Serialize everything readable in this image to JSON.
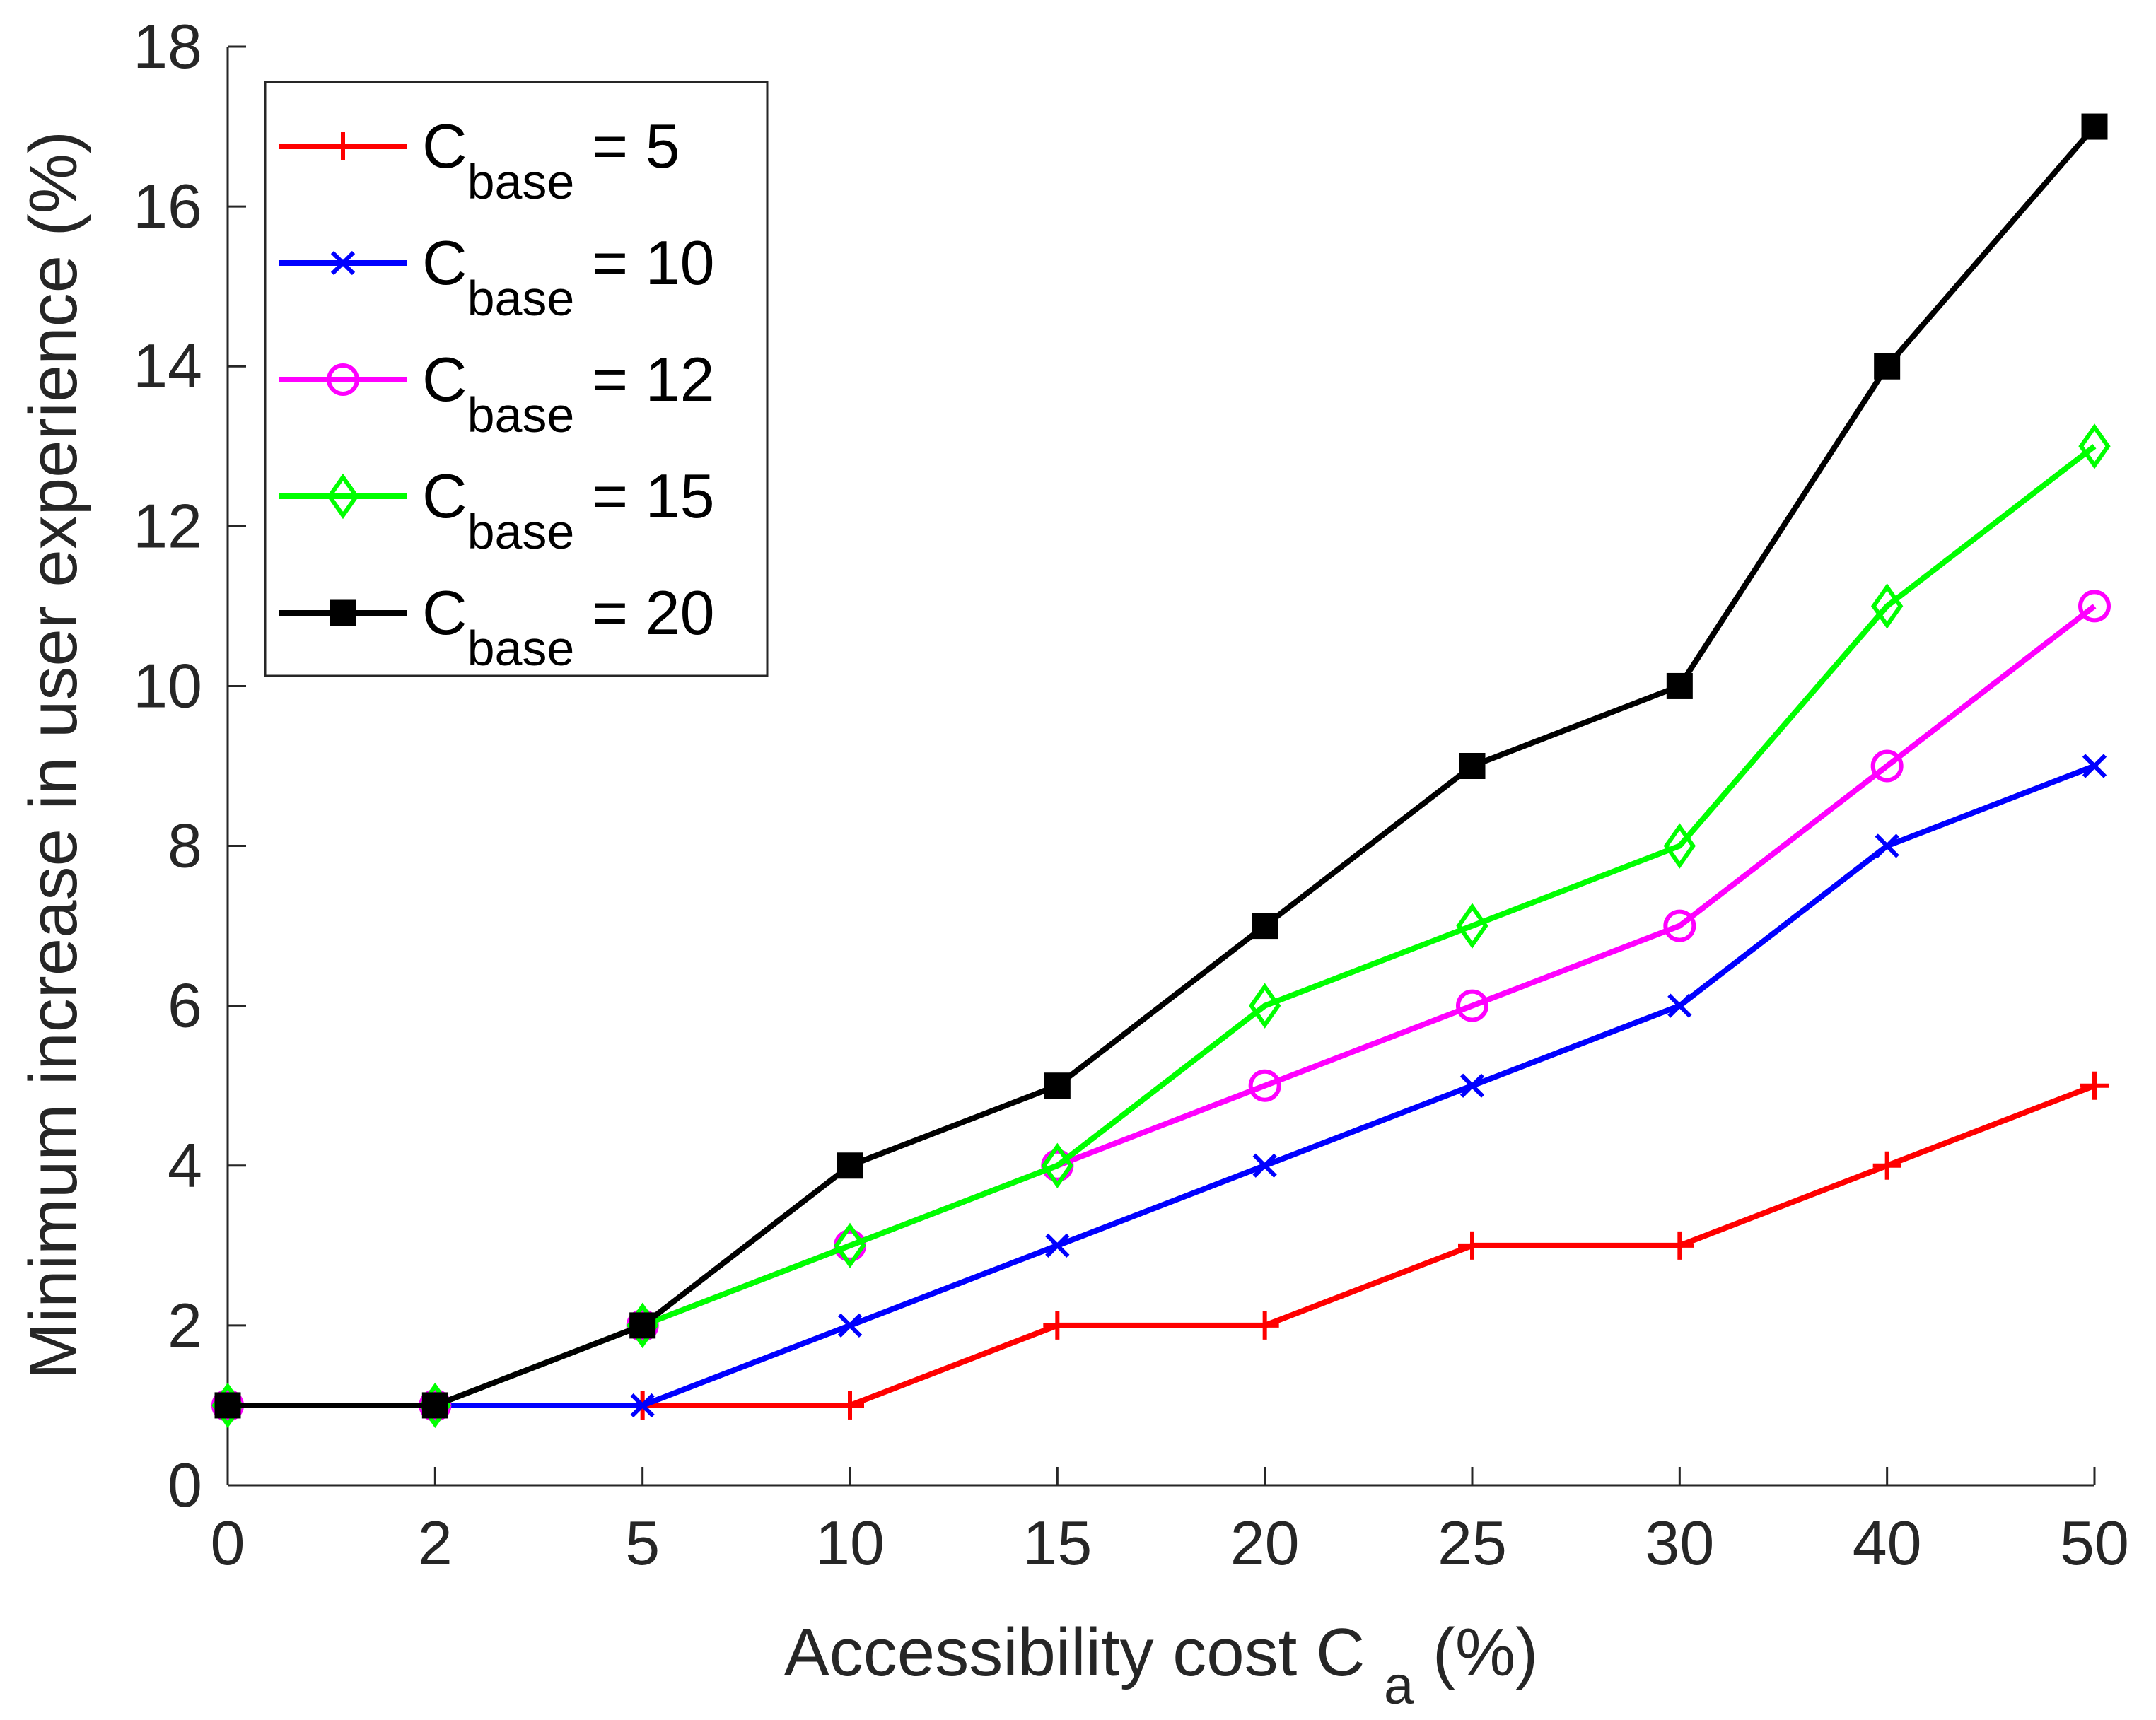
{
  "chart_data": {
    "type": "line",
    "title": "",
    "xlabel": {
      "main": "Accessibility cost C",
      "sub": "a",
      "suffix": "(%)"
    },
    "ylabel": "Minimum increase in user experience (%)",
    "categories": [
      "0",
      "2",
      "5",
      "10",
      "15",
      "20",
      "25",
      "30",
      "40",
      "50"
    ],
    "ylim": [
      0,
      18
    ],
    "yticks": [
      "0",
      "2",
      "4",
      "6",
      "8",
      "10",
      "12",
      "14",
      "16",
      "18"
    ],
    "grid": false,
    "legend_position": "top-left",
    "series": [
      {
        "name": "C_base = 5",
        "legend_main": "C",
        "legend_sub": "base",
        "legend_tail": "= 5",
        "color": "#ff0000",
        "marker": "plus",
        "values": [
          1,
          1,
          1,
          1,
          2,
          2,
          3,
          3,
          4,
          5
        ]
      },
      {
        "name": "C_base = 10",
        "legend_main": "C",
        "legend_sub": "base",
        "legend_tail": "= 10",
        "color": "#0000ff",
        "marker": "x",
        "values": [
          1,
          1,
          1,
          2,
          3,
          4,
          5,
          6,
          8,
          9
        ]
      },
      {
        "name": "C_base = 12",
        "legend_main": "C",
        "legend_sub": "base",
        "legend_tail": "= 12",
        "color": "#ff00ff",
        "marker": "circle",
        "values": [
          1,
          1,
          2,
          3,
          4,
          5,
          6,
          7,
          9,
          11
        ]
      },
      {
        "name": "C_base = 15",
        "legend_main": "C",
        "legend_sub": "base",
        "legend_tail": "= 15",
        "color": "#00ff00",
        "marker": "diamond",
        "values": [
          1,
          1,
          2,
          3,
          4,
          6,
          7,
          8,
          11,
          13
        ]
      },
      {
        "name": "C_base = 20",
        "legend_main": "C",
        "legend_sub": "base",
        "legend_tail": "= 20",
        "color": "#000000",
        "marker": "square",
        "values": [
          1,
          1,
          2,
          4,
          5,
          7,
          9,
          10,
          14,
          17
        ]
      }
    ]
  }
}
